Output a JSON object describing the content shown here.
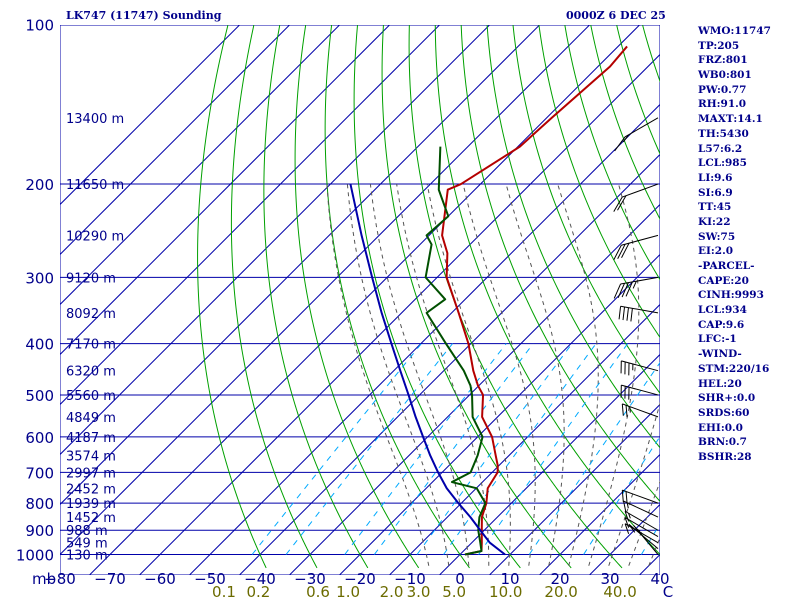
{
  "header": {
    "title": "LK747 (11747) Sounding",
    "time": "0000Z  6 DEC 25"
  },
  "indices": [
    "WMO:11747",
    "TP:205",
    "FRZ:801",
    "WB0:801",
    "PW:0.77",
    "RH:91.0",
    "MAXT:14.1",
    "TH:5430",
    "L57:6.2",
    "LCL:985",
    "LI:9.6",
    "SI:6.9",
    "TT:45",
    "KI:22",
    "SW:75",
    "EI:2.0",
    "-PARCEL-",
    "CAPE:20",
    "CINH:9993",
    "LCL:934",
    "CAP:9.6",
    "LFC:-1",
    "-WIND-",
    "STM:220/16",
    "HEL:20",
    "SHR+:0.0",
    "SRDS:60",
    "EHI:0.0",
    "BRN:0.7",
    "BSHR:28"
  ],
  "colors": {
    "axis_text": "#00008b",
    "grid": "#0000aa",
    "dry_adiabat": "#00a000",
    "moist_adiabat": "#555555",
    "mixing_ratio": "#00aaff",
    "temperature": "#b40000",
    "dewpoint": "#005000",
    "parcel": "#0000aa",
    "mixing_label": "#6b6b00"
  },
  "chart_data": {
    "type": "line",
    "subtype": "skew-T log-p sounding",
    "y_unit_label": "mb",
    "x_unit_label": "C",
    "pressure_ticks": [
      100,
      200,
      300,
      400,
      500,
      600,
      700,
      800,
      900,
      1000
    ],
    "temperature_ticks": [
      -80,
      -70,
      -60,
      -50,
      -40,
      -30,
      -20,
      -10,
      0,
      10,
      20,
      30,
      40
    ],
    "ylim": [
      1000,
      100
    ],
    "xlim_at_1000mb": [
      -80,
      40
    ],
    "skew": "45 degrees",
    "grid": true,
    "mixing_ratio_labels": [
      "0.1",
      "0.2",
      "0.6",
      "1.0",
      "2.0",
      "3.0",
      "5.0",
      "10.0",
      "20.0",
      "40.0"
    ],
    "height_labels": [
      {
        "p": 150,
        "label": "13400 m"
      },
      {
        "p": 200,
        "label": "11650 m"
      },
      {
        "p": 250,
        "label": "10290 m"
      },
      {
        "p": 300,
        "label": "9120 m"
      },
      {
        "p": 350,
        "label": "8092 m"
      },
      {
        "p": 400,
        "label": "7170 m"
      },
      {
        "p": 450,
        "label": "6320 m"
      },
      {
        "p": 500,
        "label": "5560 m"
      },
      {
        "p": 550,
        "label": "4849 m"
      },
      {
        "p": 600,
        "label": "4187 m"
      },
      {
        "p": 650,
        "label": "3574 m"
      },
      {
        "p": 700,
        "label": "2997 m"
      },
      {
        "p": 750,
        "label": "2452 m"
      },
      {
        "p": 800,
        "label": "1939 m"
      },
      {
        "p": 850,
        "label": "1452 m"
      },
      {
        "p": 900,
        "label": "988 m"
      },
      {
        "p": 950,
        "label": "549 m"
      },
      {
        "p": 1000,
        "label": "130 m"
      }
    ],
    "series": [
      {
        "key": "temperature",
        "points": [
          [
            1000,
            1
          ],
          [
            985,
            3.6
          ],
          [
            950,
            2
          ],
          [
            900,
            -0.5
          ],
          [
            850,
            -3.1
          ],
          [
            800,
            -5
          ],
          [
            750,
            -7.7
          ],
          [
            700,
            -8.9
          ],
          [
            680,
            -10.2
          ],
          [
            650,
            -12.7
          ],
          [
            600,
            -17.1
          ],
          [
            550,
            -23.1
          ],
          [
            500,
            -27.3
          ],
          [
            480,
            -30.2
          ],
          [
            450,
            -34.1
          ],
          [
            400,
            -40.5
          ],
          [
            350,
            -48.6
          ],
          [
            300,
            -58.1
          ],
          [
            270,
            -62.8
          ],
          [
            250,
            -67.4
          ],
          [
            205,
            -75.4
          ],
          [
            200,
            -73.9
          ],
          [
            170,
            -69.6
          ],
          [
            150,
            -69
          ],
          [
            120,
            -67.6
          ],
          [
            110,
            -68.2
          ]
        ]
      },
      {
        "key": "dewpoint",
        "points": [
          [
            1000,
            1
          ],
          [
            985,
            3.6
          ],
          [
            950,
            1.7
          ],
          [
            900,
            -1.2
          ],
          [
            850,
            -3.6
          ],
          [
            800,
            -5.2
          ],
          [
            750,
            -9.9
          ],
          [
            730,
            -16.1
          ],
          [
            700,
            -14.3
          ],
          [
            650,
            -16.3
          ],
          [
            600,
            -19
          ],
          [
            550,
            -25
          ],
          [
            500,
            -29.5
          ],
          [
            480,
            -31.7
          ],
          [
            450,
            -36
          ],
          [
            400,
            -45
          ],
          [
            350,
            -55
          ],
          [
            330,
            -54
          ],
          [
            300,
            -62.3
          ],
          [
            260,
            -67.7
          ],
          [
            250,
            -70.5
          ],
          [
            230,
            -70
          ],
          [
            205,
            -77.2
          ],
          [
            170,
            -85.5
          ]
        ]
      },
      {
        "key": "parcel",
        "points": [
          [
            1000,
            9
          ],
          [
            950,
            3.6
          ],
          [
            900,
            -0.8
          ],
          [
            850,
            -5.4
          ],
          [
            800,
            -10.6
          ],
          [
            750,
            -15.9
          ],
          [
            700,
            -20.8
          ],
          [
            650,
            -25.8
          ],
          [
            600,
            -30.9
          ],
          [
            550,
            -36.4
          ],
          [
            500,
            -42.2
          ],
          [
            450,
            -48.7
          ],
          [
            400,
            -55.9
          ],
          [
            350,
            -64
          ],
          [
            300,
            -73
          ],
          [
            250,
            -83.5
          ],
          [
            200,
            -96
          ]
        ]
      }
    ],
    "wind_barbs": [
      {
        "p": 1000,
        "dir": 220,
        "spd": 5
      },
      {
        "p": 975,
        "dir": 230,
        "spd": 10
      },
      {
        "p": 950,
        "dir": 240,
        "spd": 10
      },
      {
        "p": 925,
        "dir": 240,
        "spd": 10
      },
      {
        "p": 900,
        "dir": 240,
        "spd": 15
      },
      {
        "p": 850,
        "dir": 245,
        "spd": 15
      },
      {
        "p": 800,
        "dir": 250,
        "spd": 20
      },
      {
        "p": 550,
        "dir": 250,
        "spd": 25
      },
      {
        "p": 500,
        "dir": 255,
        "spd": 30
      },
      {
        "p": 450,
        "dir": 255,
        "spd": 35
      },
      {
        "p": 350,
        "dir": 260,
        "spd": 40
      },
      {
        "p": 300,
        "dir": 280,
        "spd": 45
      },
      {
        "p": 250,
        "dir": 285,
        "spd": 30
      },
      {
        "p": 200,
        "dir": 290,
        "spd": 20
      },
      {
        "p": 150,
        "dir": 300,
        "spd": 15
      }
    ]
  }
}
